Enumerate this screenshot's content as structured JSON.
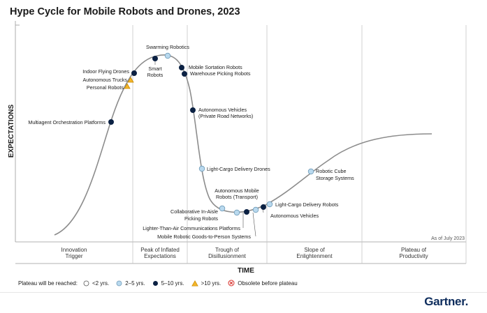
{
  "title": "Hype Cycle for Mobile Robots and Drones, 2023",
  "y_axis_label": "EXPECTATIONS",
  "x_axis_label": "TIME",
  "as_of": "As of July 2023",
  "phases": [
    {
      "line1": "Innovation",
      "line2": "Trigger"
    },
    {
      "line1": "Peak of Inflated",
      "line2": "Expectations"
    },
    {
      "line1": "Trough of",
      "line2": "Disillusionment"
    },
    {
      "line1": "Slope of",
      "line2": "Enlightenment"
    },
    {
      "line1": "Plateau of",
      "line2": "Productivity"
    }
  ],
  "legend": {
    "title": "Plateau will be reached:",
    "items": [
      {
        "label": "<2 yrs.",
        "symbol": "circle-white"
      },
      {
        "label": "2–5 yrs.",
        "symbol": "circle-light-blue"
      },
      {
        "label": "5–10 yrs.",
        "symbol": "circle-dark-navy"
      },
      {
        "label": ">10 yrs.",
        "symbol": "triangle-yellow"
      },
      {
        "label": "Obsolete before plateau",
        "symbol": "x-circle-red"
      }
    ]
  },
  "colors": {
    "two_to_five": "#b9d9ee",
    "five_to_ten": "#0b2143",
    "over_ten": "#f3b529",
    "obsolete": "#d9312b",
    "curve": "#888888",
    "brand": "#0d2c5c"
  },
  "technologies": [
    {
      "name": "Multiagent Orchestration Platforms",
      "lines": [
        "Multiagent Orchestration Platforms"
      ],
      "category": "5-10"
    },
    {
      "name": "Personal Robots",
      "lines": [
        "Personal Robots"
      ],
      "category": ">10"
    },
    {
      "name": "Autonomous Trucks",
      "lines": [
        "Autonomous Trucks"
      ],
      "category": ">10"
    },
    {
      "name": "Indoor Flying Drones",
      "lines": [
        "Indoor Flying Drones"
      ],
      "category": "5-10"
    },
    {
      "name": "Smart Robots",
      "lines": [
        "Smart",
        "Robots"
      ],
      "category": "5-10"
    },
    {
      "name": "Swarming Robotics",
      "lines": [
        "Swarming Robotics"
      ],
      "category": "2-5"
    },
    {
      "name": "Mobile Sortation Robots",
      "lines": [
        "Mobile Sortation Robots"
      ],
      "category": "5-10"
    },
    {
      "name": "Warehouse Picking Robots",
      "lines": [
        "Warehouse Picking Robots"
      ],
      "category": "5-10"
    },
    {
      "name": "Autonomous Vehicles (Private Road Networks)",
      "lines": [
        "Autonomous Vehicles",
        "(Private Road Networks)"
      ],
      "category": "5-10"
    },
    {
      "name": "Light-Cargo Delivery Drones",
      "lines": [
        "Light-Cargo Delivery Drones"
      ],
      "category": "2-5"
    },
    {
      "name": "Autonomous Mobile Robots (Transport)",
      "lines": [
        "Autonomous Mobile",
        "Robots (Transport)"
      ],
      "category": "5-10"
    },
    {
      "name": "Collaborative In-Aisle Picking Robots",
      "lines": [
        "Collaborative In-Aisle",
        "Picking Robots"
      ],
      "category": "2-5"
    },
    {
      "name": "Lighter-Than-Air Communications Platforms",
      "lines": [
        "Lighter-Than-Air Communications Platforms"
      ],
      "category": "2-5"
    },
    {
      "name": "Mobile Robotic Goods-to-Person Systems",
      "lines": [
        "Mobile Robotic Goods-to-Person Systems"
      ],
      "category": "2-5"
    },
    {
      "name": "Autonomous Vehicles",
      "lines": [
        "Autonomous Vehicles"
      ],
      "category": "5-10"
    },
    {
      "name": "Light-Cargo Delivery Robots",
      "lines": [
        "Light-Cargo Delivery Robots"
      ],
      "category": "2-5"
    },
    {
      "name": "Robotic Cube Storage Systems",
      "lines": [
        "Robotic Cube",
        "Storage Systems"
      ],
      "category": "2-5"
    }
  ],
  "brand": "Gartner."
}
